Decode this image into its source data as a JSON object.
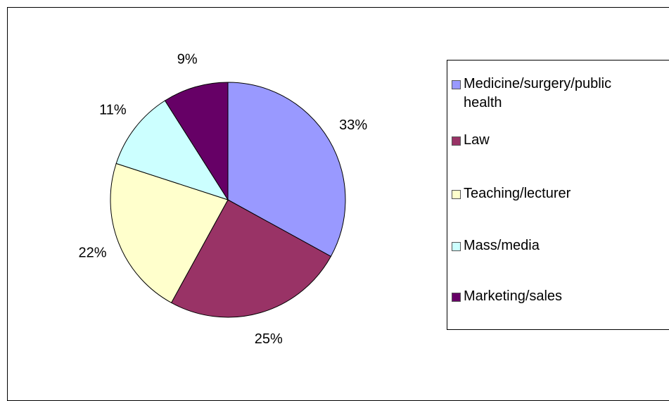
{
  "chart_data": {
    "type": "pie",
    "title": "",
    "series": [
      {
        "values": [
          33,
          25,
          22,
          11,
          9
        ],
        "labels": [
          "33%",
          "25%",
          "22%",
          "11%",
          "9%"
        ]
      }
    ],
    "categories": [
      "Medicine/surgery/public health",
      "Law",
      "Teaching/lecturer",
      "Mass/media",
      "Marketing/sales"
    ],
    "legend_text": [
      "Medicine/surgery/public\nhealth",
      "Law",
      "Teaching/lecturer",
      "Mass/media",
      "Marketing/sales"
    ],
    "colors": [
      "#9999ff",
      "#993366",
      "#ffffcc",
      "#ccffff",
      "#660066"
    ],
    "legend_position": "right",
    "start_angle_deg": 0,
    "direction": "clockwise"
  }
}
